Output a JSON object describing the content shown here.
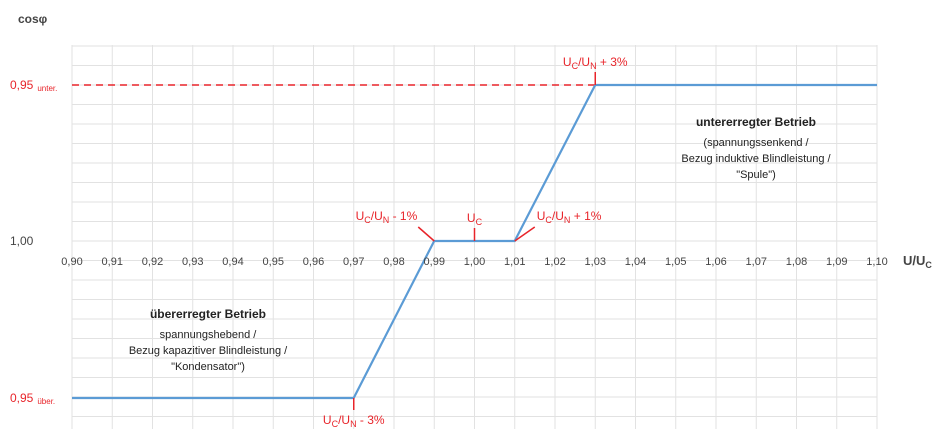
{
  "chart_data": {
    "type": "line",
    "title": "",
    "ylabel": "cosφ",
    "xlabel": "U/U",
    "xlabel_sub": "C",
    "xlim": [
      0.9,
      1.1
    ],
    "x_ticks": [
      0.9,
      0.91,
      0.92,
      0.93,
      0.94,
      0.95,
      0.96,
      0.97,
      0.98,
      0.99,
      1.0,
      1.01,
      1.02,
      1.03,
      1.04,
      1.05,
      1.06,
      1.07,
      1.08,
      1.09,
      1.1
    ],
    "x_tick_labels": [
      "0,90",
      "0,91",
      "0,92",
      "0,93",
      "0,94",
      "0,95",
      "0,96",
      "0,97",
      "0,98",
      "0,99",
      "1,00",
      "1,01",
      "1,02",
      "1,03",
      "1,04",
      "1,05",
      "1,06",
      "1,07",
      "1,08",
      "1,09",
      "1,10"
    ],
    "y_ticks": [
      {
        "key": "unter",
        "label": "0,95",
        "sub": "unter.",
        "level": 1
      },
      {
        "key": "one",
        "label": "1,00",
        "sub": "",
        "level": 0
      },
      {
        "key": "ueber",
        "label": "0,95",
        "sub": "über.",
        "level": -1
      }
    ],
    "grid": true,
    "series": [
      {
        "color": "#5b9bd5",
        "points": [
          {
            "x": 0.9,
            "level": -1
          },
          {
            "x": 0.97,
            "level": -1
          },
          {
            "x": 0.99,
            "level": 0
          },
          {
            "x": 1.01,
            "level": 0
          },
          {
            "x": 1.03,
            "level": 1
          },
          {
            "x": 1.1,
            "level": 1
          }
        ]
      }
    ],
    "reference_line": {
      "level": 1,
      "style": "dashed",
      "color": "#e8242a"
    },
    "markers": [
      {
        "key": "m097",
        "x": 0.97,
        "level": -1,
        "main": "U",
        "sub": "C",
        "mid": "/U",
        "sub2": "N",
        "rest": " - 3%",
        "pos": "below"
      },
      {
        "key": "m099",
        "x": 0.99,
        "level": 0,
        "main": "U",
        "sub": "C",
        "mid": "/U",
        "sub2": "N",
        "rest": " - 1%",
        "pos": "above-left"
      },
      {
        "key": "m100",
        "x": 1.0,
        "level": 0,
        "main": "U",
        "sub": "C",
        "mid": "",
        "sub2": "",
        "rest": "",
        "pos": "above"
      },
      {
        "key": "m101",
        "x": 1.01,
        "level": 0,
        "main": "U",
        "sub": "C",
        "mid": "/U",
        "sub2": "N",
        "rest": " + 1%",
        "pos": "above-right"
      },
      {
        "key": "m103",
        "x": 1.03,
        "level": 1,
        "main": "U",
        "sub": "C",
        "mid": "/U",
        "sub2": "N",
        "rest": " + 3%",
        "pos": "above"
      }
    ],
    "annotations": {
      "unter": {
        "heading": "untererregter Betrieb",
        "lines": [
          "(spannungssenkend /",
          "Bezug induktive Blindleistung /",
          "\"Spule\")"
        ]
      },
      "ueber": {
        "heading": "übererregter Betrieb",
        "lines": [
          "spannungshebend /",
          "Bezug kapazitiver Blindleistung /",
          "\"Kondensator\")"
        ]
      }
    },
    "colors": {
      "line": "#5b9bd5",
      "marker": "#e8242a",
      "grid": "#e2e2e2",
      "text": "#444444"
    }
  }
}
